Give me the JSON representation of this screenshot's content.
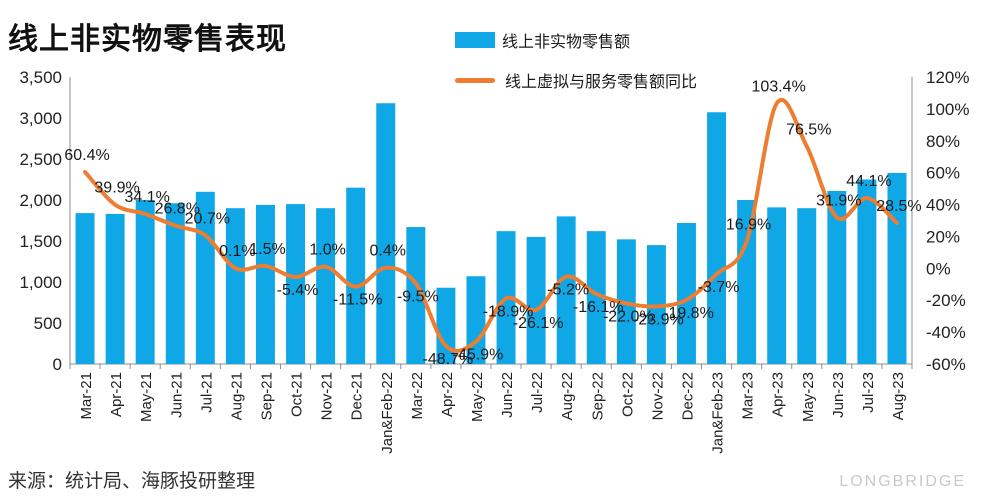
{
  "page": {
    "title": "线上非实物零售表现",
    "source": "来源：统计局、海豚投研整理",
    "watermark": "LONGBRIDGE"
  },
  "chart_data": {
    "type": "bar",
    "categories": [
      "Mar-21",
      "Apr-21",
      "May-21",
      "Jun-21",
      "Jul-21",
      "Aug-21",
      "Sep-21",
      "Oct-21",
      "Nov-21",
      "Dec-21",
      "Jan&Feb-22",
      "Mar-22",
      "Apr-22",
      "May-22",
      "Jun-22",
      "Jul-22",
      "Aug-22",
      "Sep-22",
      "Oct-22",
      "Nov-22",
      "Dec-22",
      "Jan&Feb-23",
      "Mar-23",
      "Apr-23",
      "May-23",
      "Jun-23",
      "Jul-23",
      "Aug-23"
    ],
    "series": [
      {
        "name": "线上非实物零售额",
        "type": "bar",
        "axis": "left",
        "color": "#0fa7e6",
        "values": [
          1840,
          1830,
          2000,
          1960,
          2100,
          1900,
          1940,
          1950,
          1900,
          2150,
          3180,
          1670,
          930,
          1070,
          1620,
          1550,
          1800,
          1620,
          1520,
          1450,
          1720,
          3070,
          2000,
          1910,
          1900,
          2110,
          2250,
          2330
        ]
      },
      {
        "name": "线上虚拟与服务零售额同比",
        "type": "line",
        "axis": "right",
        "color": "#ed7d31",
        "values": [
          60.4,
          39.9,
          34.1,
          26.8,
          20.7,
          0.1,
          1.5,
          -5.4,
          1.0,
          -11.5,
          0.4,
          -9.5,
          -48.7,
          -45.9,
          -18.9,
          -26.1,
          -5.2,
          -16.1,
          -22.0,
          -23.9,
          -19.8,
          -3.7,
          16.9,
          103.4,
          76.5,
          31.9,
          44.1,
          28.5
        ],
        "labels": [
          "60.4%",
          "39.9%",
          "34.1%",
          "26.8%",
          "20.7%",
          "0.1%",
          "1.5%",
          "-5.4%",
          "1.0%",
          "-11.5%",
          "0.4%",
          "-9.5%",
          "-48.7%",
          "-45.9%",
          "-18.9%",
          "-26.1%",
          "-5.2%",
          "-16.1%",
          "-22.0%",
          "-23.9%",
          "-19.8%",
          "-3.7%",
          "16.9%",
          "103.4%",
          "76.5%",
          "31.9%",
          "44.1%",
          "28.5%"
        ]
      }
    ],
    "y_left": {
      "ylim": [
        0,
        3500
      ],
      "ticks": [
        "0",
        "500",
        "1,000",
        "1,500",
        "2,000",
        "2,500",
        "3,000",
        "3,500"
      ]
    },
    "y_right": {
      "ylim": [
        -60,
        120
      ],
      "ticks": [
        "-60%",
        "-40%",
        "-20%",
        "0%",
        "20%",
        "40%",
        "60%",
        "80%",
        "100%",
        "120%"
      ]
    },
    "legend_position": "top-center",
    "grid": false
  }
}
